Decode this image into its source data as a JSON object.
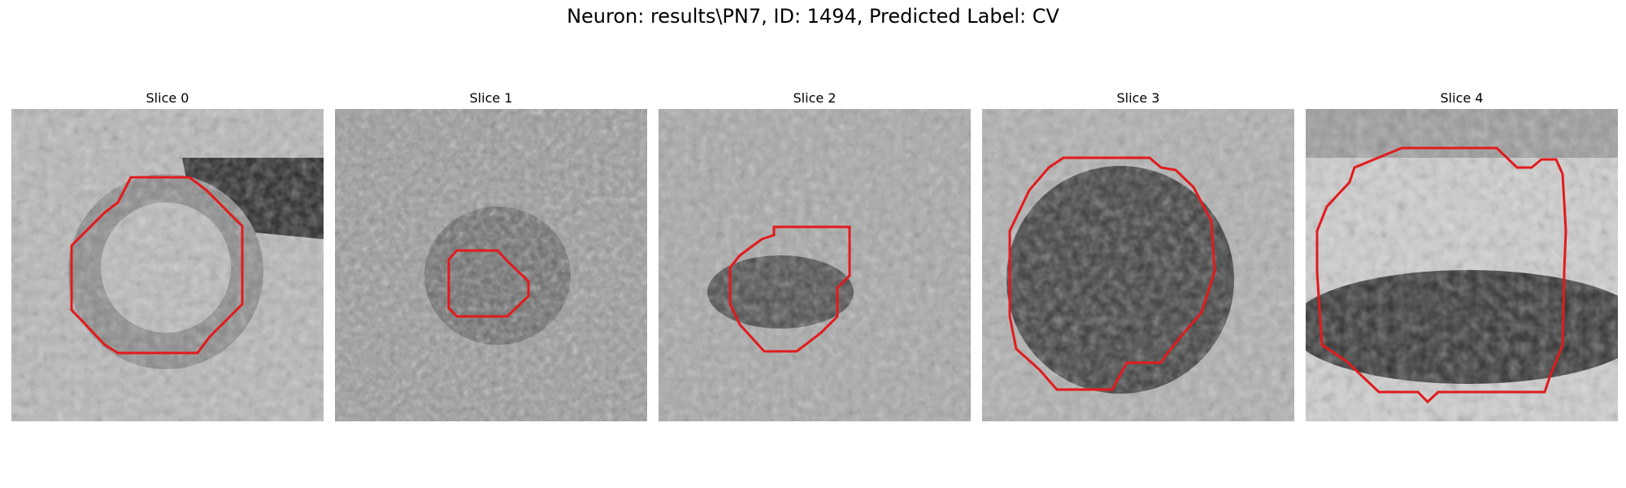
{
  "figure": {
    "title": "Neuron: results\\PN7, ID: 1494, Predicted Label: CV",
    "contour_color": "#e31a1c"
  },
  "panels": [
    {
      "title": "Slice 0"
    },
    {
      "title": "Slice 1"
    },
    {
      "title": "Slice 2"
    },
    {
      "title": "Slice 3"
    },
    {
      "title": "Slice 4"
    }
  ]
}
